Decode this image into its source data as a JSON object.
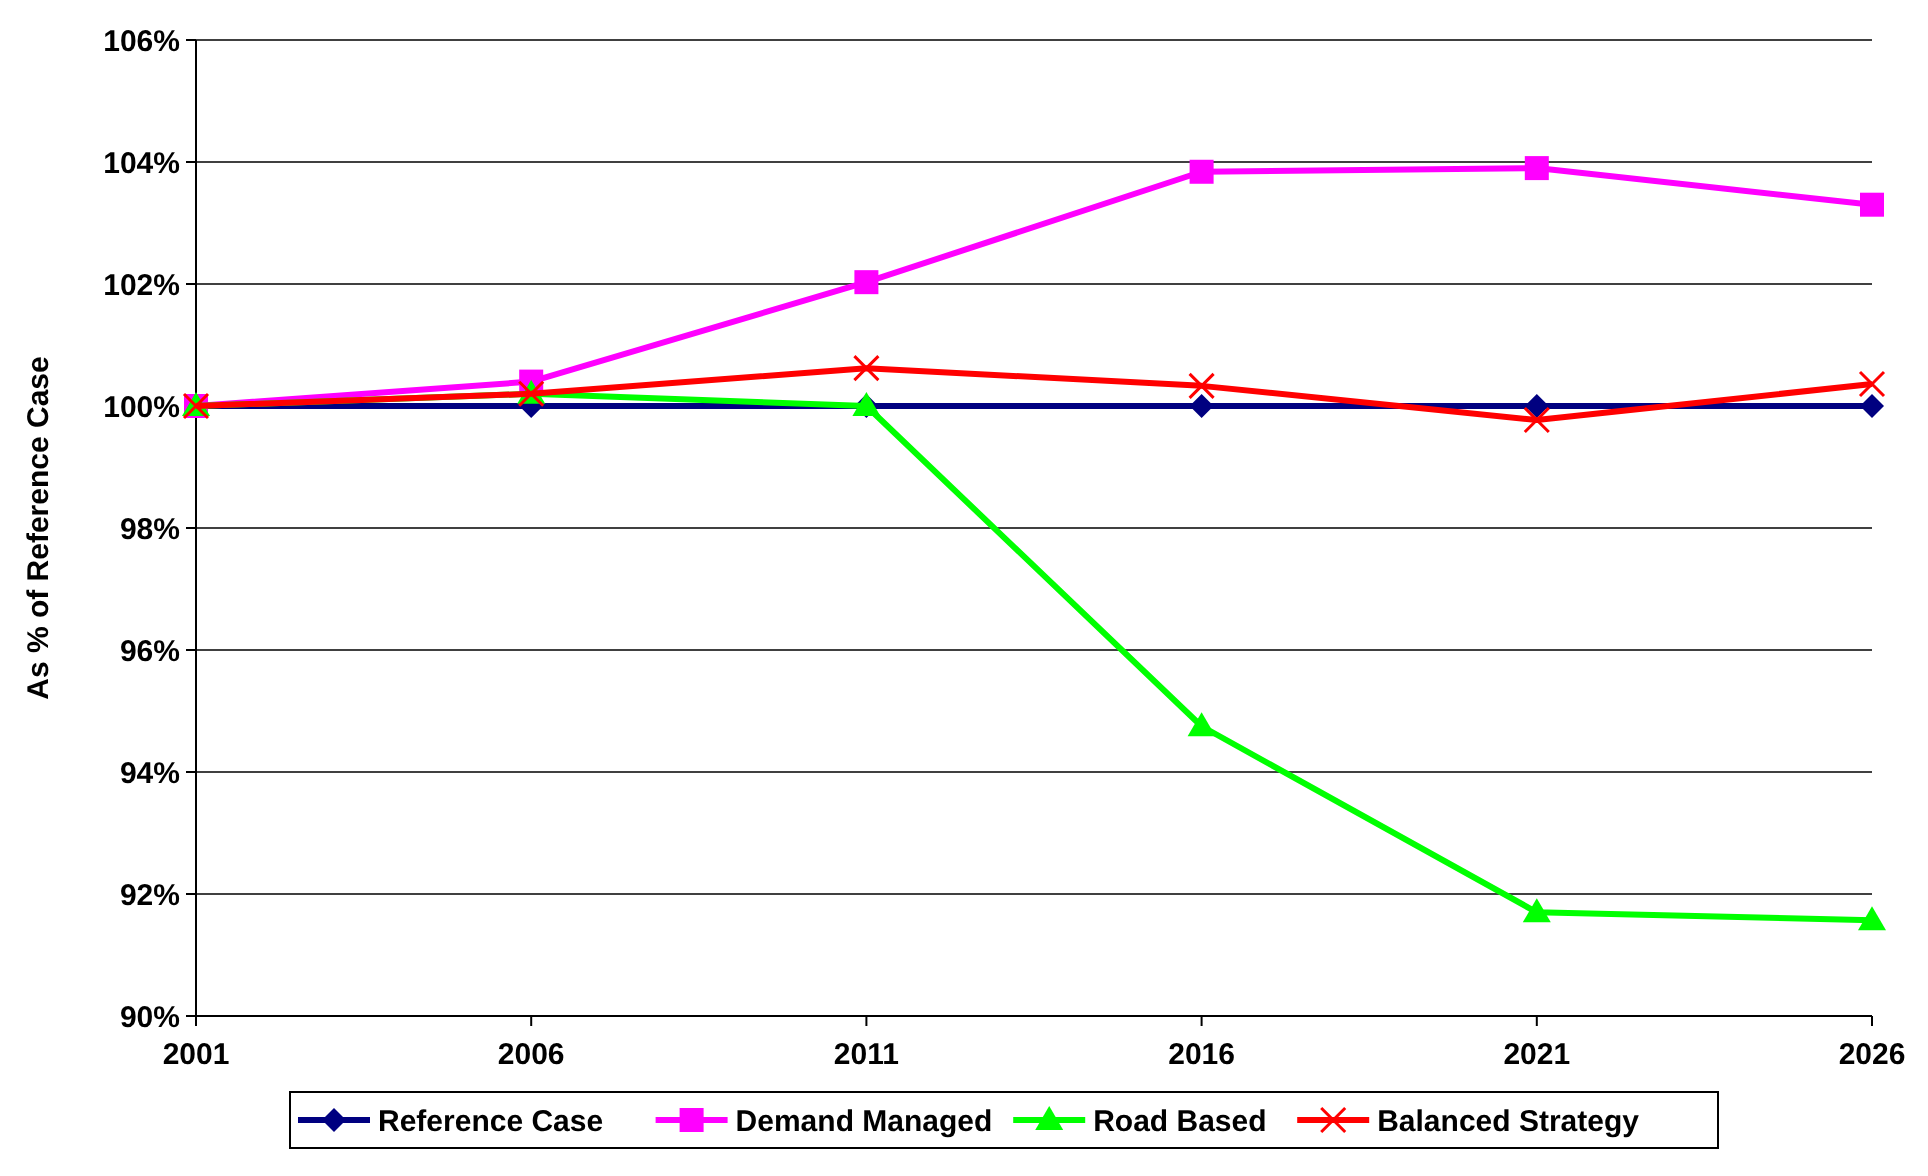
{
  "chart_data": {
    "type": "line",
    "ylabel": "As % of Reference Case",
    "x": [
      2001,
      2006,
      2011,
      2016,
      2021,
      2026
    ],
    "xlim": [
      2001,
      2026
    ],
    "xticks": [
      2001,
      2006,
      2011,
      2016,
      2021,
      2026
    ],
    "ylim": [
      90,
      106
    ],
    "yticks": [
      {
        "value": 90,
        "label": "90%"
      },
      {
        "value": 92,
        "label": "92%"
      },
      {
        "value": 94,
        "label": "94%"
      },
      {
        "value": 96,
        "label": "96%"
      },
      {
        "value": 98,
        "label": "98%"
      },
      {
        "value": 100,
        "label": "100%"
      },
      {
        "value": 102,
        "label": "102%"
      },
      {
        "value": 104,
        "label": "104%"
      },
      {
        "value": 106,
        "label": "106%"
      }
    ],
    "grid": "y",
    "legend": "bottom",
    "series": [
      {
        "name": "Reference Case",
        "color": "#000080",
        "marker": "diamond",
        "values": [
          100,
          100,
          100,
          100,
          100,
          100
        ]
      },
      {
        "name": "Demand Managed",
        "color": "#ff00ff",
        "marker": "square",
        "values": [
          100,
          100.4,
          102.03,
          103.84,
          103.9,
          103.3
        ]
      },
      {
        "name": "Road Based",
        "color": "#00ff00",
        "marker": "triangle",
        "values": [
          100,
          100.2,
          100,
          94.75,
          91.7,
          91.57
        ]
      },
      {
        "name": "Balanced Strategy",
        "color": "#ff0000",
        "marker": "cross",
        "values": [
          100,
          100.2,
          100.62,
          100.33,
          99.77,
          100.36
        ]
      }
    ]
  }
}
